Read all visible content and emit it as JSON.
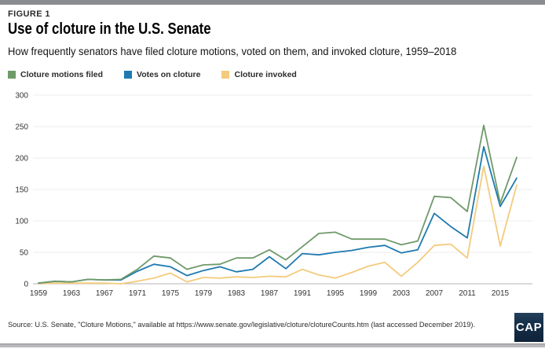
{
  "figure_label": "FIGURE 1",
  "title": "Use of cloture in the U.S. Senate",
  "subtitle": "How frequently senators have filed cloture motions, voted on them, and invoked cloture, 1959–2018",
  "legend": [
    {
      "label": "Cloture motions filed",
      "color": "#6f9a69"
    },
    {
      "label": "Votes on cloture",
      "color": "#1e7ab0"
    },
    {
      "label": "Cloture invoked",
      "color": "#f3cb7d"
    }
  ],
  "source": "Source: U.S. Senate, \"Cloture Motions,\" available at https://www.senate.gov/legislative/cloture/clotureCounts.htm (last accessed December 2019).",
  "logo_text": "CAP",
  "colors": {
    "top_bar": "#8b8b92",
    "bottom_bar": "#b8b8bd",
    "logo_background": "#16304a",
    "gridline": "#ececec",
    "axis_line": "#b3b3b3",
    "tick_text": "#333333"
  },
  "chart_data": {
    "type": "line",
    "title": "Use of cloture in the U.S. Senate",
    "xlabel": "",
    "ylabel": "",
    "x": [
      1959,
      1961,
      1963,
      1965,
      1967,
      1969,
      1971,
      1973,
      1975,
      1977,
      1979,
      1981,
      1983,
      1985,
      1987,
      1989,
      1991,
      1993,
      1995,
      1997,
      1999,
      2001,
      2003,
      2005,
      2007,
      2009,
      2011,
      2013,
      2015,
      2017
    ],
    "x_tick_labels": [
      "1959",
      "1963",
      "1967",
      "1971",
      "1975",
      "1979",
      "1983",
      "1987",
      "1991",
      "1995",
      "1999",
      "2003",
      "2007",
      "2011",
      "2015"
    ],
    "series": [
      {
        "name": "Cloture motions filed",
        "color": "#6f9a69",
        "values": [
          1,
          4,
          3,
          7,
          6,
          7,
          23,
          44,
          41,
          23,
          30,
          31,
          41,
          41,
          54,
          38,
          59,
          80,
          82,
          71,
          71,
          71,
          62,
          68,
          139,
          137,
          115,
          252,
          128,
          201
        ]
      },
      {
        "name": "Votes on cloture",
        "color": "#1e7ab0",
        "values": [
          1,
          4,
          3,
          7,
          6,
          6,
          20,
          31,
          27,
          13,
          21,
          27,
          19,
          23,
          43,
          24,
          48,
          46,
          50,
          53,
          58,
          61,
          49,
          54,
          112,
          91,
          73,
          218,
          123,
          168
        ]
      },
      {
        "name": "Cloture invoked",
        "color": "#f3cb7d",
        "values": [
          0,
          1,
          1,
          1,
          1,
          0,
          4,
          9,
          17,
          3,
          10,
          9,
          11,
          10,
          12,
          11,
          23,
          14,
          9,
          18,
          28,
          34,
          12,
          34,
          61,
          63,
          41,
          187,
          60,
          157
        ]
      }
    ],
    "ylim": [
      0,
      300
    ],
    "yticks": [
      0,
      50,
      100,
      150,
      200,
      250,
      300
    ],
    "grid": true,
    "legend_position": "top"
  }
}
